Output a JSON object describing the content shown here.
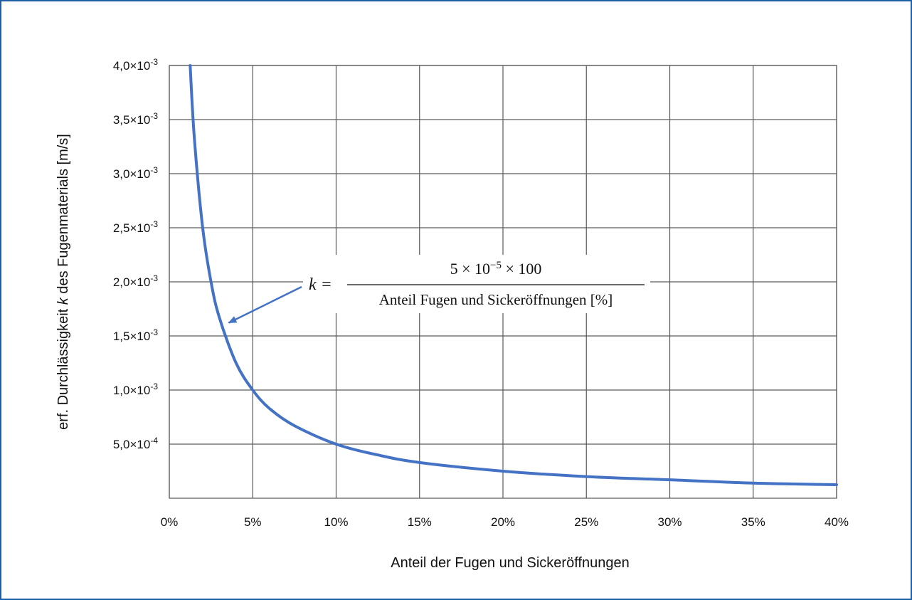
{
  "chart_data": {
    "type": "line",
    "xlabel": "Anteil der Fugen und Sickeröffnungen",
    "ylabel_parts": [
      "erf. Durchlässigkeit ",
      "k",
      " des Fugenmaterials [m/s]"
    ],
    "xlim": [
      0,
      40
    ],
    "ylim": [
      0,
      0.004
    ],
    "x_ticks": [
      0,
      5,
      10,
      15,
      20,
      25,
      30,
      35,
      40
    ],
    "x_tick_labels": [
      "0%",
      "5%",
      "10%",
      "15%",
      "20%",
      "25%",
      "30%",
      "35%",
      "40%"
    ],
    "y_ticks": [
      0.0005,
      0.001,
      0.0015,
      0.002,
      0.0025,
      0.003,
      0.0035,
      0.004
    ],
    "y_tick_labels": [
      {
        "mantissa": "5,0×10",
        "exp": "-4"
      },
      {
        "mantissa": "1,0×10",
        "exp": "-3"
      },
      {
        "mantissa": "1,5×10",
        "exp": "-3"
      },
      {
        "mantissa": "2,0×10",
        "exp": "-3"
      },
      {
        "mantissa": "2,5×10",
        "exp": "-3"
      },
      {
        "mantissa": "3,0×10",
        "exp": "-3"
      },
      {
        "mantissa": "3,5×10",
        "exp": "-3"
      },
      {
        "mantissa": "4,0×10",
        "exp": "-3"
      }
    ],
    "grid": true,
    "series": [
      {
        "color": "#4472c4",
        "x": [
          1.25,
          1.5,
          2,
          2.5,
          3,
          4,
          5,
          6,
          7.5,
          10,
          12.5,
          15,
          20,
          25,
          30,
          35,
          40
        ],
        "y": [
          0.004,
          0.00333,
          0.0025,
          0.002,
          0.00167,
          0.00125,
          0.001,
          0.00083,
          0.00067,
          0.0005,
          0.0004,
          0.00033,
          0.00025,
          0.0002,
          0.00017,
          0.00014,
          0.000125
        ]
      }
    ],
    "annotation": {
      "lhs": "k =",
      "numerator": "5 × 10",
      "numerator_exp": "−5",
      "numerator_tail": " × 100",
      "denominator": "Anteil Fugen und Sickeröffnungen [%]",
      "arrow_target": {
        "x": 3.3,
        "y": 0.0017
      },
      "arrow_color": "#4472c4"
    }
  }
}
